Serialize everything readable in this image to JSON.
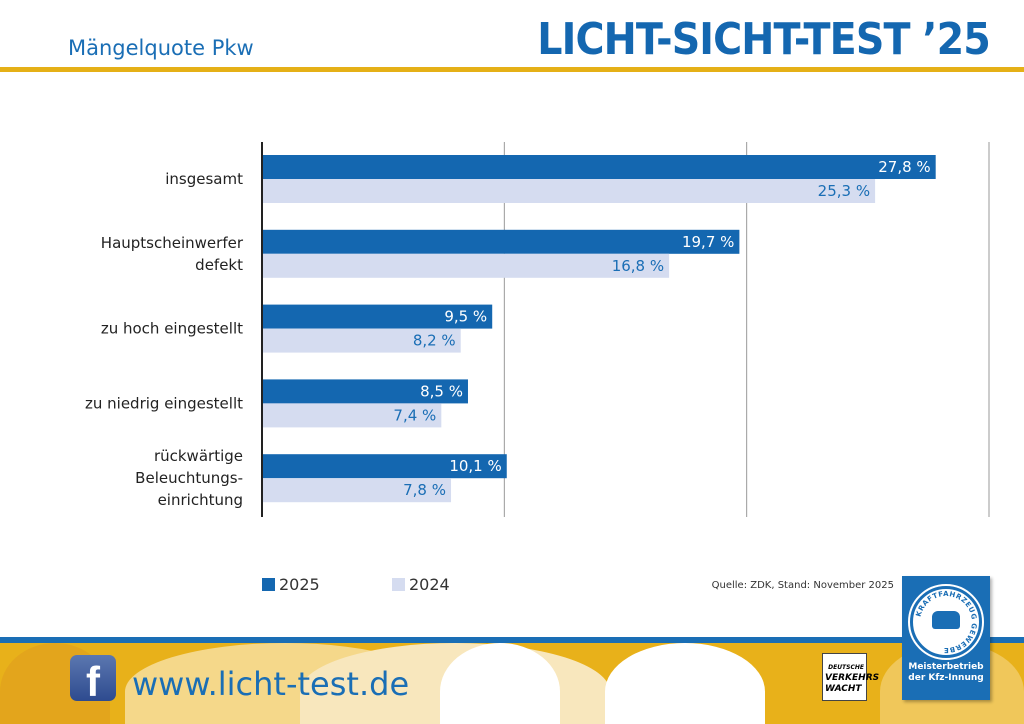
{
  "header": {
    "subtitle": "Mängelquote Pkw",
    "title": "LICHT-SICHT-TEST ’25"
  },
  "chart_data": {
    "type": "bar",
    "orientation": "horizontal",
    "categories": [
      "insgesamt",
      "Hauptscheinwerfer defekt",
      "zu hoch eingestellt",
      "zu niedrig eingestellt",
      "rückwärtige Beleuchtungs-einrichtung"
    ],
    "category_lines": [
      [
        "insgesamt"
      ],
      [
        "Hauptscheinwerfer",
        "defekt"
      ],
      [
        "zu hoch eingestellt"
      ],
      [
        "zu niedrig eingestellt"
      ],
      [
        "rückwärtige",
        "Beleuchtungs-",
        "einrichtung"
      ]
    ],
    "series": [
      {
        "name": "2025",
        "values": [
          27.8,
          19.7,
          9.5,
          8.5,
          10.1
        ],
        "labels": [
          "27,8 %",
          "19,7 %",
          "9,5 %",
          "8,5 %",
          "10,1 %"
        ],
        "color": "#1467b0"
      },
      {
        "name": "2024",
        "values": [
          25.3,
          16.8,
          8.2,
          7.4,
          7.8
        ],
        "labels": [
          "25,3 %",
          "16,8 %",
          "8,2 %",
          "7,4 %",
          "7,8 %"
        ],
        "color": "#d5dcf0"
      }
    ],
    "xlim": [
      0,
      30
    ],
    "gridlines": [
      10,
      20,
      30
    ],
    "grid": true,
    "legend": "bottom-left"
  },
  "source": "Quelle: ZDK, Stand: November 2025",
  "footer": {
    "url": "www.licht-test.de",
    "facebook_icon": "f",
    "verkehrswacht": [
      "DEUTSCHE",
      "VERKEHRS",
      "WACHT"
    ],
    "badge_ring": "KRAFTFAHRZEUG GEWERBE",
    "badge_text": [
      "Meisterbetrieb",
      "der Kfz-Innung"
    ]
  }
}
